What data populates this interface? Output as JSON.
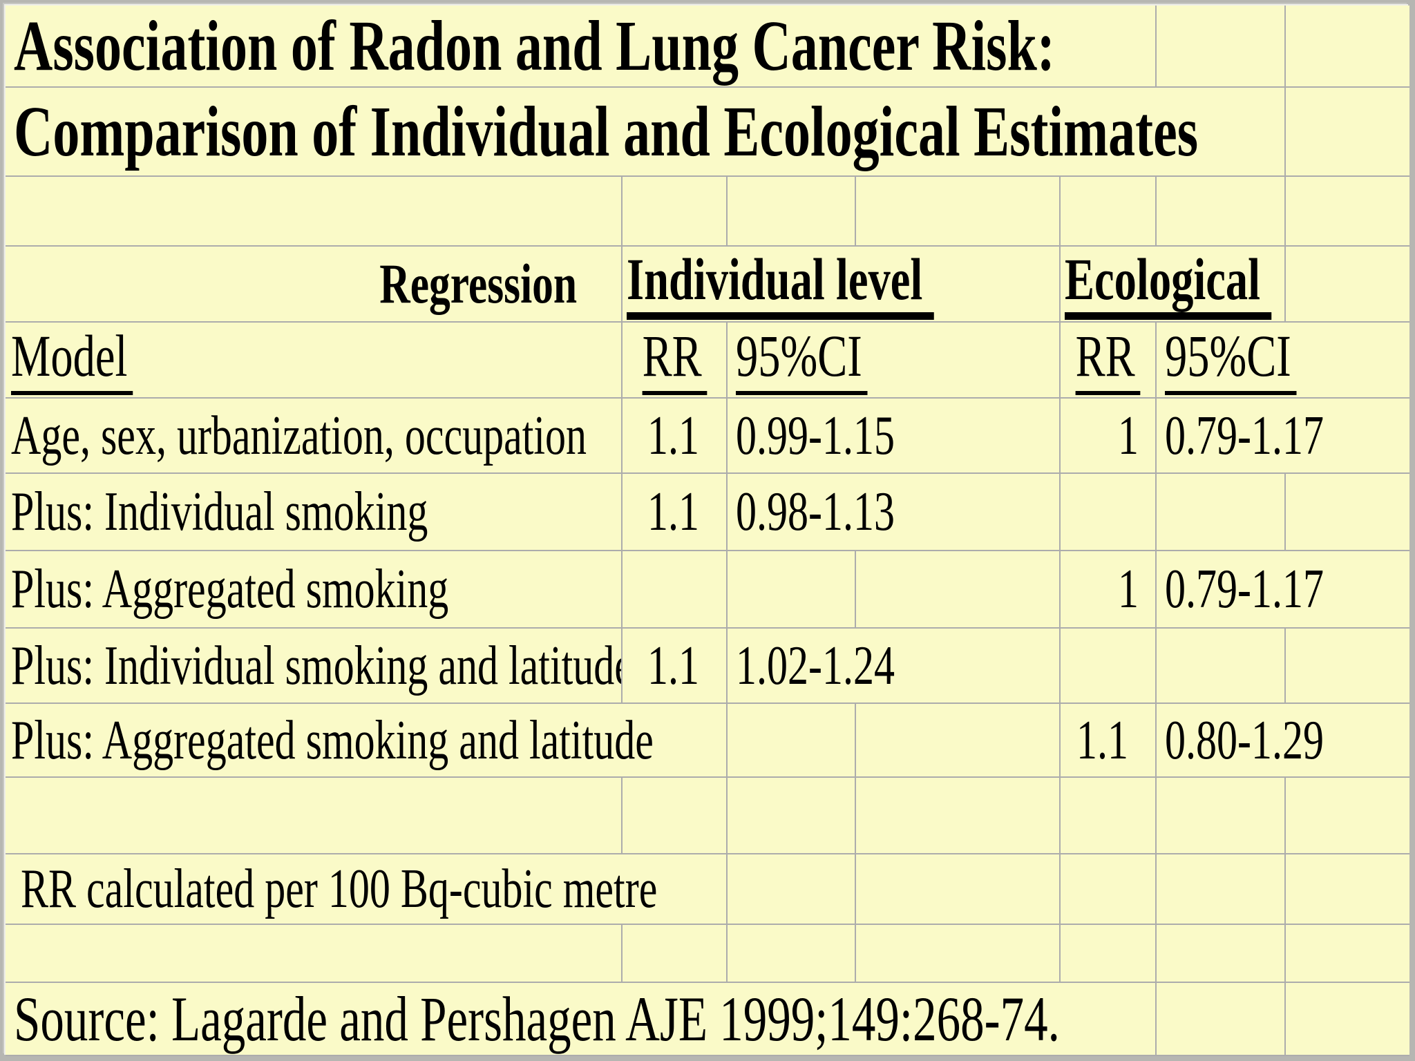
{
  "titles": {
    "line1": "Association of Radon and Lung Cancer Risk:",
    "line2": "Comparison of Individual and Ecological Estimates"
  },
  "header": {
    "regression": "Regression",
    "model": "Model",
    "group_individual": "Individual level",
    "group_ecological": "Ecological",
    "rr": "RR",
    "ci": "95%CI"
  },
  "rows": [
    {
      "label": "Age, sex, urbanization, occupation",
      "ind_rr": "1.1",
      "ind_ci": "0.99-1.15",
      "eco_rr": "1",
      "eco_ci": "0.79-1.17"
    },
    {
      "label": "Plus: Individual smoking",
      "ind_rr": "1.1",
      "ind_ci": "0.98-1.13",
      "eco_rr": "",
      "eco_ci": ""
    },
    {
      "label": "Plus: Aggregated smoking",
      "ind_rr": "",
      "ind_ci": "",
      "eco_rr": "1",
      "eco_ci": "0.79-1.17"
    },
    {
      "label": "Plus: Individual smoking and latitude",
      "ind_rr": "1.1",
      "ind_ci": "1.02-1.24",
      "eco_rr": "",
      "eco_ci": ""
    },
    {
      "label": "Plus: Aggregated smoking and latitude",
      "ind_rr": "",
      "ind_ci": "",
      "eco_rr": "1.1",
      "eco_ci": "0.80-1.29"
    }
  ],
  "footer": {
    "note": "RR calculated per 100 Bq-cubic metre",
    "source": "Source: Lagarde and Pershagen AJE 1999;149:268-74."
  },
  "colors": {
    "sheet_background": "#FAFAC8",
    "gridline": "#ACACAC",
    "text": "#000000",
    "frame": "#B6B6B2"
  }
}
